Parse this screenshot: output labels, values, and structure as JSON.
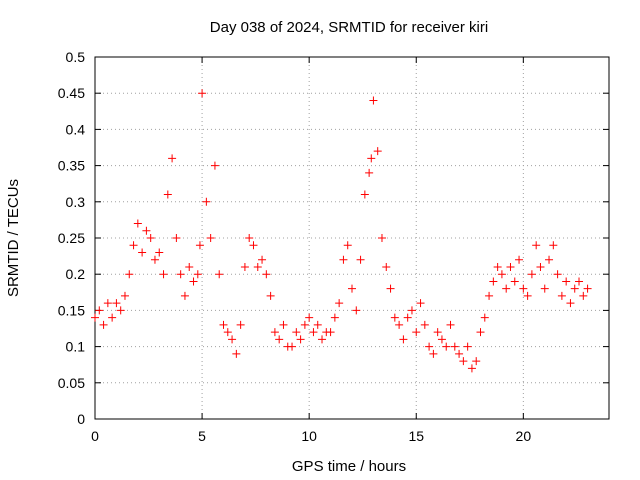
{
  "chart_data": {
    "type": "scatter",
    "title": "Day 038 of 2024, SRMTID for receiver kiri",
    "xlabel": "GPS time / hours",
    "ylabel": "SRMTID / TECUs",
    "xlim": [
      0,
      24
    ],
    "ylim": [
      0,
      0.5
    ],
    "x_ticks": [
      0,
      5,
      10,
      15,
      20
    ],
    "x_tick_labels": [
      "0",
      "5",
      "10",
      "15",
      "20"
    ],
    "y_ticks": [
      0,
      0.05,
      0.1,
      0.15,
      0.2,
      0.25,
      0.3,
      0.35,
      0.4,
      0.45,
      0.5
    ],
    "y_tick_labels": [
      "0",
      "0.05",
      "0.1",
      "0.15",
      "0.2",
      "0.25",
      "0.3",
      "0.35",
      "0.4",
      "0.45",
      "0.5"
    ],
    "grid": true,
    "marker": "plus",
    "marker_color": "#ff0000",
    "series": [
      {
        "name": "SRMTID",
        "x": [
          0.0,
          0.2,
          0.4,
          0.6,
          0.8,
          1.0,
          1.2,
          1.4,
          1.6,
          1.8,
          2.0,
          2.2,
          2.4,
          2.6,
          2.8,
          3.0,
          3.2,
          3.4,
          3.6,
          3.8,
          4.0,
          4.2,
          4.4,
          4.6,
          4.8,
          4.9,
          5.0,
          5.2,
          5.4,
          5.6,
          5.8,
          6.0,
          6.2,
          6.4,
          6.6,
          6.8,
          7.0,
          7.2,
          7.4,
          7.6,
          7.8,
          8.0,
          8.2,
          8.4,
          8.6,
          8.8,
          9.0,
          9.2,
          9.4,
          9.6,
          9.8,
          10.0,
          10.2,
          10.4,
          10.6,
          10.8,
          11.0,
          11.2,
          11.4,
          11.6,
          11.8,
          12.0,
          12.2,
          12.4,
          12.6,
          12.8,
          12.9,
          13.0,
          13.2,
          13.4,
          13.6,
          13.8,
          14.0,
          14.2,
          14.4,
          14.6,
          14.8,
          15.0,
          15.2,
          15.4,
          15.6,
          15.8,
          16.0,
          16.2,
          16.4,
          16.6,
          16.8,
          17.0,
          17.2,
          17.4,
          17.6,
          17.8,
          18.0,
          18.2,
          18.4,
          18.6,
          18.8,
          19.0,
          19.2,
          19.4,
          19.6,
          19.8,
          20.0,
          20.2,
          20.4,
          20.6,
          20.8,
          21.0,
          21.2,
          21.4,
          21.6,
          21.8,
          22.0,
          22.2,
          22.4,
          22.6,
          22.8,
          23.0
        ],
        "y": [
          0.14,
          0.15,
          0.13,
          0.16,
          0.14,
          0.16,
          0.15,
          0.17,
          0.2,
          0.24,
          0.27,
          0.23,
          0.26,
          0.25,
          0.22,
          0.23,
          0.2,
          0.31,
          0.36,
          0.25,
          0.2,
          0.17,
          0.21,
          0.19,
          0.2,
          0.24,
          0.45,
          0.3,
          0.25,
          0.35,
          0.2,
          0.13,
          0.12,
          0.11,
          0.09,
          0.13,
          0.21,
          0.25,
          0.24,
          0.21,
          0.22,
          0.2,
          0.17,
          0.12,
          0.11,
          0.13,
          0.1,
          0.1,
          0.12,
          0.11,
          0.13,
          0.14,
          0.12,
          0.13,
          0.11,
          0.12,
          0.12,
          0.14,
          0.16,
          0.22,
          0.24,
          0.18,
          0.15,
          0.22,
          0.31,
          0.34,
          0.36,
          0.44,
          0.37,
          0.25,
          0.21,
          0.18,
          0.14,
          0.13,
          0.11,
          0.14,
          0.15,
          0.12,
          0.16,
          0.13,
          0.1,
          0.09,
          0.12,
          0.11,
          0.1,
          0.13,
          0.1,
          0.09,
          0.08,
          0.1,
          0.07,
          0.08,
          0.12,
          0.14,
          0.17,
          0.19,
          0.21,
          0.2,
          0.18,
          0.21,
          0.19,
          0.22,
          0.18,
          0.17,
          0.2,
          0.24,
          0.21,
          0.18,
          0.22,
          0.24,
          0.2,
          0.17,
          0.19,
          0.16,
          0.18,
          0.19,
          0.17,
          0.18
        ]
      }
    ]
  }
}
